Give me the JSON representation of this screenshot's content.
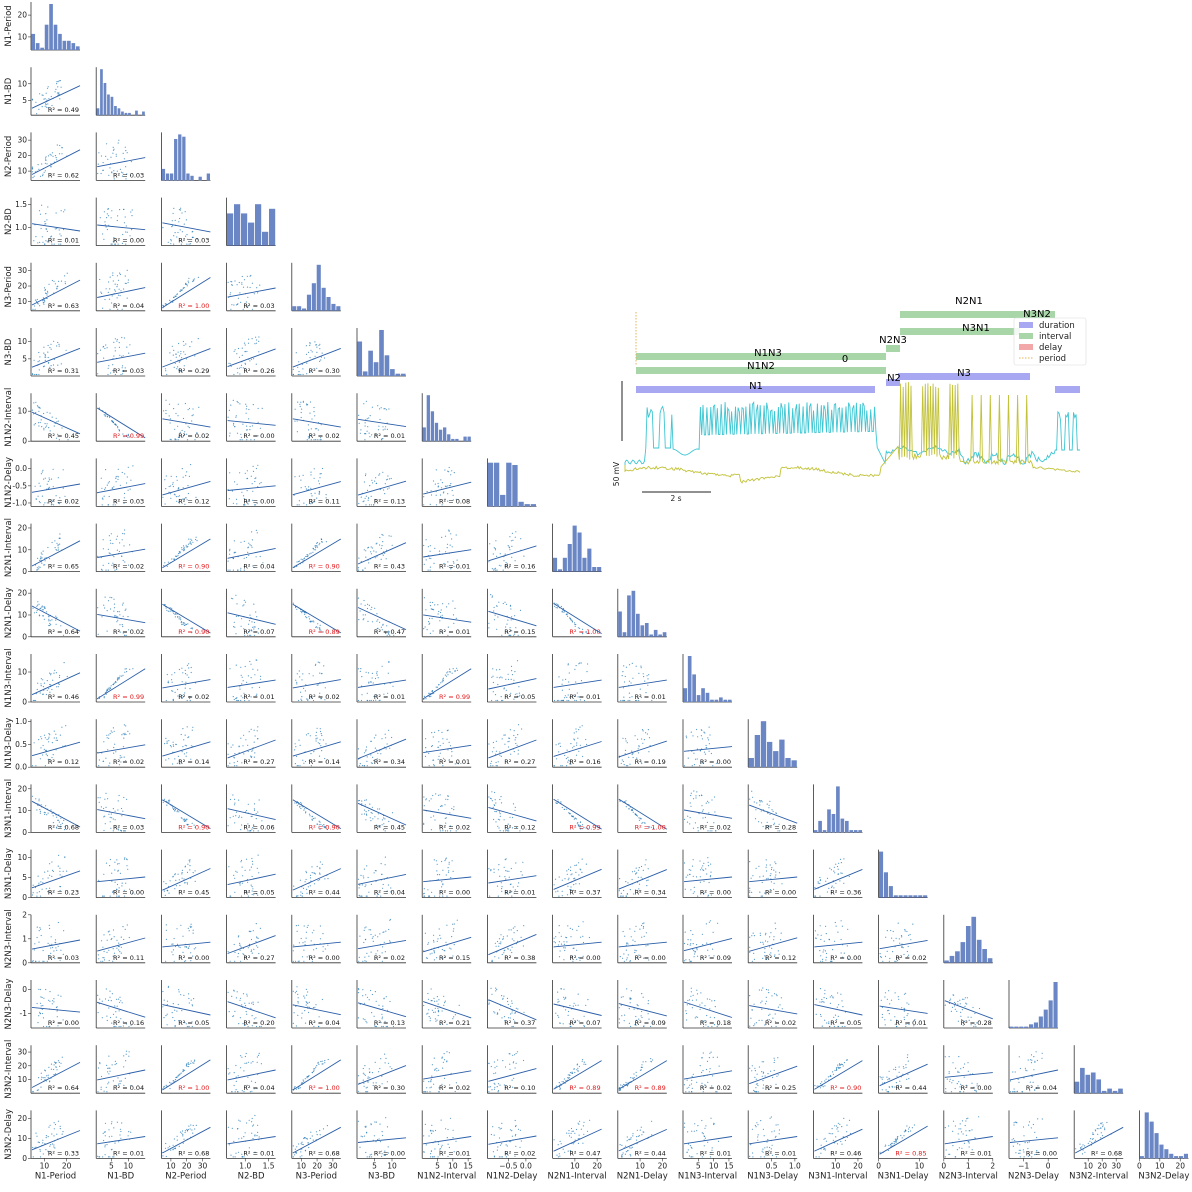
{
  "variables": [
    "N1-Period",
    "N1-BD",
    "N2-Period",
    "N2-BD",
    "N3-Period",
    "N3-BD",
    "N1N2-Interval",
    "N1N2-Delay",
    "N2N1-Interval",
    "N2N1-Delay",
    "N1N3-Interval",
    "N1N3-Delay",
    "N3N1-Interval",
    "N3N1-Delay",
    "N2N3-Interval",
    "N2N3-Delay",
    "N3N2-Interval",
    "N3N2-Delay"
  ],
  "colors": {
    "point": "#1f77b4",
    "fit": "#2a5ea8",
    "hist": "#6a86c4",
    "r2_high": "#e41a1c",
    "r2": "#111111",
    "trace_n1": "#3ec6d3",
    "trace_n2": "#c2c23a",
    "duration": "#a8a8f2",
    "interval": "#a8d6a8",
    "delay": "#f2a8a8",
    "period": "#e6b455",
    "label_green": "#2e7d32",
    "label_blue": "#1a237e"
  },
  "chart_data": {
    "type": "scatter",
    "title": "",
    "layout": "lower-triangular pair plot: histograms on the diagonal, scatter with linear fit below",
    "ranges": {
      "N1-Period": [
        4,
        26
      ],
      "N1-BD": [
        0.5,
        15
      ],
      "N2-Period": [
        4,
        35
      ],
      "N2-BD": [
        0.6,
        1.65
      ],
      "N3-Period": [
        4,
        35
      ],
      "N3-BD": [
        0,
        14
      ],
      "N1N2-Interval": [
        0,
        16
      ],
      "N1N2-Delay": [
        -1.1,
        0.3
      ],
      "N2N1-Interval": [
        0,
        22
      ],
      "N2N1-Delay": [
        0,
        22
      ],
      "N1N3-Interval": [
        0,
        16
      ],
      "N1N3-Delay": [
        0,
        1.05
      ],
      "N3N1-Interval": [
        0,
        22
      ],
      "N3N1-Delay": [
        0,
        12
      ],
      "N2N3-Interval": [
        0,
        2
      ],
      "N2N3-Delay": [
        -1.6,
        0.4
      ],
      "N3N2-Interval": [
        0,
        35
      ],
      "N3N2-Delay": [
        0,
        24
      ]
    },
    "y_ticks": {
      "N1-Period": [
        "10",
        "20"
      ],
      "N1-BD": [
        "5",
        "10"
      ],
      "N2-Period": [
        "10",
        "20",
        "30"
      ],
      "N2-BD": [
        "1.0",
        "1.5"
      ],
      "N3-Period": [
        "10",
        "20",
        "30"
      ],
      "N3-BD": [
        "5",
        "10"
      ],
      "N1N2-Interval": [
        "0",
        "10"
      ],
      "N1N2-Delay": [
        "-1.0",
        "-0.5",
        "0.0"
      ],
      "N2N1-Interval": [
        "0",
        "10",
        "20"
      ],
      "N2N1-Delay": [
        "0",
        "10",
        "20"
      ],
      "N1N3-Interval": [
        "0",
        "10"
      ],
      "N1N3-Delay": [
        "0.0",
        "0.5",
        "1.0"
      ],
      "N3N1-Interval": [
        "0",
        "10",
        "20"
      ],
      "N3N1-Delay": [
        "0",
        "5",
        "10"
      ],
      "N2N3-Interval": [
        "0",
        "1",
        "2"
      ],
      "N2N3-Delay": [
        "-1",
        "0"
      ],
      "N3N2-Interval": [
        "10",
        "20",
        "30"
      ],
      "N3N2-Delay": [
        "0",
        "10",
        "20"
      ]
    },
    "x_ticks": {
      "N1-Period": [
        "10",
        "20"
      ],
      "N1-BD": [
        "5",
        "10"
      ],
      "N2-Period": [
        "10",
        "20",
        "30"
      ],
      "N2-BD": [
        "1.0",
        "1.5"
      ],
      "N3-Period": [
        "10",
        "20",
        "30"
      ],
      "N3-BD": [
        "5",
        "10"
      ],
      "N1N2-Interval": [
        "5",
        "10",
        "15"
      ],
      "N1N2-Delay": [
        "−0.5",
        "0.0"
      ],
      "N2N1-Interval": [
        "10",
        "20"
      ],
      "N2N1-Delay": [
        "10",
        "20"
      ],
      "N1N3-Interval": [
        "5",
        "10",
        "15"
      ],
      "N1N3-Delay": [
        "0.5",
        "1.0"
      ],
      "N3N1-Interval": [
        "10",
        "20"
      ],
      "N3N1-Delay": [
        "0",
        "10"
      ],
      "N2N3-Interval": [
        "0",
        "1",
        "2"
      ],
      "N2N3-Delay": [
        "−1",
        "0"
      ],
      "N3N2-Interval": [
        "10",
        "20",
        "30"
      ],
      "N3N2-Delay": [
        "0",
        "10",
        "20"
      ]
    },
    "r2_values": [
      [
        0.49
      ],
      [
        0.62,
        0.03
      ],
      [
        0.01,
        0.0,
        0.03
      ],
      [
        0.63,
        0.04,
        1.0,
        0.03
      ],
      [
        0.31,
        0.03,
        0.29,
        0.26,
        0.3
      ],
      [
        0.45,
        0.99,
        0.02,
        0.0,
        0.02,
        0.01
      ],
      [
        0.02,
        0.03,
        0.12,
        0.0,
        0.11,
        0.13,
        0.08
      ],
      [
        0.65,
        0.02,
        0.9,
        0.04,
        0.9,
        0.43,
        0.01,
        0.16
      ],
      [
        0.64,
        0.02,
        0.9,
        0.07,
        0.89,
        0.47,
        0.01,
        0.15,
        1.0
      ],
      [
        0.46,
        0.99,
        0.02,
        0.01,
        0.02,
        0.01,
        0.99,
        0.05,
        0.01,
        0.01
      ],
      [
        0.12,
        0.02,
        0.14,
        0.27,
        0.14,
        0.34,
        0.01,
        0.27,
        0.16,
        0.19,
        0.0
      ],
      [
        0.68,
        0.03,
        0.9,
        0.06,
        0.9,
        0.45,
        0.02,
        0.12,
        0.99,
        1.0,
        0.02,
        0.28
      ],
      [
        0.23,
        0.0,
        0.45,
        0.05,
        0.44,
        0.04,
        0.0,
        0.01,
        0.37,
        0.34,
        0.0,
        0.0,
        0.36
      ],
      [
        0.03,
        0.11,
        0.0,
        0.27,
        0.0,
        0.02,
        0.15,
        0.38,
        0.0,
        0.0,
        0.09,
        0.12,
        0.0,
        0.02
      ],
      [
        0.0,
        0.16,
        0.05,
        0.2,
        0.04,
        0.13,
        0.21,
        0.37,
        0.07,
        0.09,
        0.18,
        0.02,
        0.05,
        0.01,
        0.28
      ],
      [
        0.64,
        0.04,
        1.0,
        0.04,
        1.0,
        0.3,
        0.02,
        0.1,
        0.89,
        0.89,
        0.02,
        0.25,
        0.9,
        0.44,
        0.0,
        0.04
      ],
      [
        0.33,
        0.01,
        0.68,
        0.01,
        0.68,
        0.0,
        0.01,
        0.02,
        0.47,
        0.44,
        0.01,
        0.01,
        0.46,
        0.85,
        0.01,
        0.0,
        0.68
      ]
    ],
    "r2_prefix": "R² = ",
    "r2_highlight_threshold": 0.85,
    "histograms": [
      [
        0.35,
        0.15,
        0.05,
        0.55,
        1.0,
        0.55,
        0.35,
        0.2,
        0.2,
        0.15,
        0.08
      ],
      [
        0.15,
        1.0,
        0.7,
        0.45,
        0.4,
        0.2,
        0.15,
        0.08,
        0.05,
        0.05,
        0,
        0.1,
        0,
        0.08
      ],
      [
        0.25,
        0.15,
        0.15,
        0.9,
        1.0,
        0.95,
        0.15,
        0.1,
        0,
        0.08,
        0,
        0.15
      ],
      [
        0.7,
        0.9,
        0.7,
        0.5,
        0.9,
        0.3,
        0.8
      ],
      [
        0.1,
        0.1,
        0.05,
        0.35,
        0.6,
        1.0,
        0.5,
        0.3,
        0.15,
        0.1
      ],
      [
        0.75,
        0.1,
        0.55,
        0.3,
        1.0,
        0.45,
        0.15,
        0.05,
        0.05
      ],
      [
        0.3,
        1.0,
        0.65,
        0.4,
        0.25,
        0.3,
        0.15,
        0.05,
        0.05,
        0,
        0.1,
        0.1
      ],
      [
        0.95,
        0.95,
        0.25,
        0.95,
        0.9,
        0.1,
        0.05,
        0.05
      ],
      [
        0.3,
        0.05,
        0.3,
        0.6,
        1.0,
        0.85,
        0.3,
        0.5,
        0.1,
        0.1
      ],
      [
        0.55,
        0.1,
        0.9,
        1.0,
        0.5,
        0.25,
        0.3,
        0.05,
        0.15,
        0.05,
        0.1
      ],
      [
        0.3,
        1.0,
        0.6,
        0.15,
        0.3,
        0.2,
        0.05,
        0.05,
        0.1,
        0.05,
        0.05
      ],
      [
        0.2,
        0.7,
        1.0,
        0.55,
        0.35,
        0.6,
        0.2,
        0.15
      ],
      [
        0.05,
        0.25,
        0.05,
        0.5,
        0.4,
        1.0,
        0.3,
        0.25,
        0.05,
        0.05,
        0.05
      ],
      [
        1.0,
        0.55,
        0.25,
        0.05,
        0.05,
        0.05,
        0.05,
        0.05,
        0.05,
        0.05
      ],
      [
        0.05,
        0.15,
        0.25,
        0.45,
        0.8,
        1.0,
        0.5,
        0.3,
        0.1
      ],
      [
        0.03,
        0.03,
        0.03,
        0.03,
        0.08,
        0.12,
        0.25,
        0.4,
        0.6,
        1.0
      ],
      [
        0.25,
        0.55,
        0.4,
        0.45,
        0.3,
        0.05,
        0.1,
        0.05,
        0.1
      ],
      [
        0.05,
        1.0,
        0.8,
        0.55,
        0.3,
        0.2,
        0.1,
        0.05,
        0.05,
        0.1
      ]
    ]
  },
  "inset": {
    "legend": [
      "duration",
      "interval",
      "delay",
      "period"
    ],
    "labels": {
      "N2N1": "N2N1",
      "N3N2": "N3N2",
      "N3N1": "N3N1",
      "N2N3": "N2N3",
      "N1N3": "N1N3",
      "N1N2": "N1N2",
      "zero": "0",
      "N1": "N1",
      "N2": "N2",
      "N3": "N3"
    },
    "scale_v": "50 mV",
    "scale_t": "2 s"
  }
}
